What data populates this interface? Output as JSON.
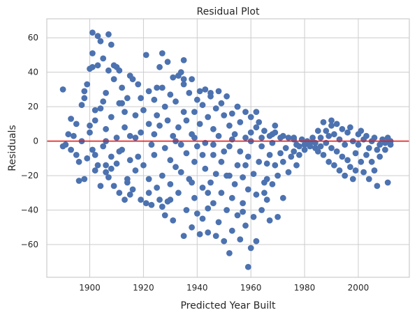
{
  "chart_data": {
    "type": "scatter",
    "title": "Residual Plot",
    "xlabel": "Predicted Year Built",
    "ylabel": "Residuals",
    "xlim": [
      1884,
      2019
    ],
    "ylim": [
      -79,
      71
    ],
    "xticks": [
      1900,
      1920,
      1940,
      1960,
      1980,
      2000
    ],
    "yticks": [
      -60,
      -40,
      -20,
      0,
      20,
      40,
      60
    ],
    "grid": true,
    "reference_line": {
      "y": 0,
      "color": "#e31a1c"
    },
    "point_color": "#4c72b0",
    "series": [
      {
        "points": [
          [
            1890,
            30
          ],
          [
            1890,
            -3
          ],
          [
            1891,
            -2
          ],
          [
            1892,
            4
          ],
          [
            1893,
            13
          ],
          [
            1893,
            -5
          ],
          [
            1894,
            3
          ],
          [
            1895,
            -8
          ],
          [
            1895,
            10
          ],
          [
            1896,
            -12
          ],
          [
            1897,
            0
          ],
          [
            1897,
            21
          ],
          [
            1898,
            -22
          ],
          [
            1898,
            25
          ],
          [
            1898,
            29
          ],
          [
            1899,
            33
          ],
          [
            1899,
            -10
          ],
          [
            1900,
            5
          ],
          [
            1900,
            9
          ],
          [
            1900,
            42
          ],
          [
            1901,
            43
          ],
          [
            1901,
            51
          ],
          [
            1901,
            63
          ],
          [
            1902,
            -17
          ],
          [
            1902,
            -8
          ],
          [
            1902,
            12
          ],
          [
            1903,
            44
          ],
          [
            1903,
            61
          ],
          [
            1903,
            -14
          ],
          [
            1904,
            19
          ],
          [
            1904,
            58
          ],
          [
            1905,
            23
          ],
          [
            1905,
            48
          ],
          [
            1905,
            -3
          ],
          [
            1906,
            28
          ],
          [
            1906,
            -18
          ],
          [
            1906,
            7
          ],
          [
            1907,
            62
          ],
          [
            1907,
            41
          ],
          [
            1907,
            -21
          ],
          [
            1908,
            56
          ],
          [
            1908,
            14
          ],
          [
            1908,
            -9
          ],
          [
            1909,
            36
          ],
          [
            1909,
            44
          ],
          [
            1909,
            -26
          ],
          [
            1910,
            2
          ],
          [
            1910,
            43
          ],
          [
            1910,
            -13
          ],
          [
            1911,
            -30
          ],
          [
            1911,
            22
          ],
          [
            1911,
            41
          ],
          [
            1912,
            -5
          ],
          [
            1912,
            31
          ],
          [
            1913,
            -34
          ],
          [
            1913,
            17
          ],
          [
            1913,
            8
          ],
          [
            1914,
            25
          ],
          [
            1914,
            -22
          ],
          [
            1915,
            38
          ],
          [
            1915,
            -11
          ],
          [
            1915,
            3
          ],
          [
            1916,
            36
          ],
          [
            1916,
            -28
          ],
          [
            1917,
            15
          ],
          [
            1917,
            -17
          ],
          [
            1918,
            -9
          ],
          [
            1918,
            33
          ],
          [
            1919,
            -34
          ],
          [
            1919,
            25
          ],
          [
            1919,
            5
          ],
          [
            1920,
            -14
          ],
          [
            1920,
            18
          ],
          [
            1921,
            50
          ],
          [
            1921,
            -36
          ],
          [
            1922,
            -22
          ],
          [
            1922,
            10
          ],
          [
            1922,
            29
          ],
          [
            1923,
            -2
          ],
          [
            1923,
            -37
          ],
          [
            1924,
            24
          ],
          [
            1924,
            -8
          ],
          [
            1925,
            15
          ],
          [
            1925,
            -27
          ],
          [
            1926,
            43
          ],
          [
            1926,
            -34
          ],
          [
            1926,
            9
          ],
          [
            1927,
            51
          ],
          [
            1927,
            -20
          ],
          [
            1927,
            31
          ],
          [
            1928,
            -43
          ],
          [
            1928,
            -4
          ],
          [
            1928,
            20
          ],
          [
            1929,
            -35
          ],
          [
            1929,
            46
          ],
          [
            1929,
            12
          ],
          [
            1930,
            -11
          ],
          [
            1930,
            -25
          ],
          [
            1930,
            27
          ],
          [
            1931,
            -46
          ],
          [
            1931,
            3
          ],
          [
            1931,
            37
          ],
          [
            1932,
            -15
          ],
          [
            1932,
            23
          ],
          [
            1933,
            38
          ],
          [
            1933,
            -30
          ],
          [
            1933,
            8
          ],
          [
            1934,
            -2
          ],
          [
            1934,
            40
          ],
          [
            1934,
            -18
          ],
          [
            1935,
            17
          ],
          [
            1935,
            -55
          ],
          [
            1935,
            33
          ],
          [
            1936,
            -40
          ],
          [
            1936,
            -7
          ],
          [
            1936,
            12
          ],
          [
            1937,
            28
          ],
          [
            1937,
            -22
          ],
          [
            1938,
            -50
          ],
          [
            1938,
            4
          ],
          [
            1938,
            36
          ],
          [
            1939,
            -33
          ],
          [
            1939,
            17
          ],
          [
            1939,
            -12
          ],
          [
            1940,
            24
          ],
          [
            1940,
            -42
          ],
          [
            1940,
            -3
          ],
          [
            1941,
            -54
          ],
          [
            1941,
            10
          ],
          [
            1941,
            29
          ],
          [
            1942,
            -27
          ],
          [
            1942,
            -45
          ],
          [
            1942,
            21
          ],
          [
            1943,
            -16
          ],
          [
            1943,
            -1
          ],
          [
            1943,
            30
          ],
          [
            1944,
            -39
          ],
          [
            1944,
            -53
          ],
          [
            1944,
            14
          ],
          [
            1945,
            -24
          ],
          [
            1945,
            26
          ],
          [
            1946,
            -8
          ],
          [
            1946,
            -36
          ],
          [
            1946,
            7
          ],
          [
            1947,
            -55
          ],
          [
            1947,
            19
          ],
          [
            1947,
            -19
          ],
          [
            1948,
            29
          ],
          [
            1948,
            -47
          ],
          [
            1948,
            3
          ],
          [
            1949,
            -30
          ],
          [
            1949,
            -12
          ],
          [
            1949,
            22
          ],
          [
            1950,
            -58
          ],
          [
            1950,
            -6
          ],
          [
            1950,
            15
          ],
          [
            1951,
            -40
          ],
          [
            1951,
            26
          ],
          [
            1951,
            -20
          ],
          [
            1952,
            -65
          ],
          [
            1952,
            -3
          ],
          [
            1952,
            9
          ],
          [
            1953,
            -52
          ],
          [
            1953,
            -33
          ],
          [
            1953,
            16
          ],
          [
            1954,
            -25
          ],
          [
            1954,
            4
          ],
          [
            1955,
            -43
          ],
          [
            1955,
            -14
          ],
          [
            1955,
            20
          ],
          [
            1956,
            -57
          ],
          [
            1956,
            -6
          ],
          [
            1956,
            11
          ],
          [
            1957,
            -36
          ],
          [
            1957,
            -21
          ],
          [
            1958,
            -49
          ],
          [
            1958,
            2
          ],
          [
            1958,
            17
          ],
          [
            1959,
            -73
          ],
          [
            1959,
            -28
          ],
          [
            1959,
            -9
          ],
          [
            1960,
            -62
          ],
          [
            1960,
            5
          ],
          [
            1960,
            14
          ],
          [
            1961,
            -44
          ],
          [
            1961,
            -19
          ],
          [
            1962,
            -58
          ],
          [
            1962,
            -31
          ],
          [
            1962,
            8
          ],
          [
            1963,
            -12
          ],
          [
            1963,
            11
          ],
          [
            1964,
            -40
          ],
          [
            1964,
            -3
          ],
          [
            1965,
            -24
          ],
          [
            1965,
            6
          ],
          [
            1966,
            -34
          ],
          [
            1966,
            -13
          ],
          [
            1967,
            -46
          ],
          [
            1967,
            3
          ],
          [
            1967,
            -8
          ],
          [
            1968,
            -25
          ],
          [
            1968,
            -1
          ],
          [
            1969,
            -14
          ],
          [
            1969,
            5
          ],
          [
            1970,
            -44
          ],
          [
            1970,
            -20
          ],
          [
            1971,
            -7
          ],
          [
            1971,
            2
          ],
          [
            1972,
            -12
          ],
          [
            1972,
            -33
          ],
          [
            1973,
            -4
          ],
          [
            1974,
            -18
          ],
          [
            1974,
            2
          ],
          [
            1975,
            -9
          ],
          [
            1976,
            -6
          ],
          [
            1976,
            1
          ],
          [
            1977,
            -14
          ],
          [
            1977,
            -2
          ],
          [
            1978,
            -3
          ],
          [
            1978,
            -8
          ],
          [
            1979,
            1
          ],
          [
            1980,
            -2
          ],
          [
            1980,
            -5
          ],
          [
            1981,
            0
          ],
          [
            1982,
            -3
          ],
          [
            1982,
            -1
          ],
          [
            1983,
            2
          ],
          [
            1984,
            -4
          ],
          [
            1984,
            -1
          ],
          [
            1985,
            6
          ],
          [
            1985,
            -6
          ],
          [
            1986,
            2
          ],
          [
            1986,
            -3
          ],
          [
            1987,
            -8
          ],
          [
            1987,
            11
          ],
          [
            1988,
            -1
          ],
          [
            1988,
            6
          ],
          [
            1989,
            -12
          ],
          [
            1989,
            3
          ],
          [
            1990,
            -4
          ],
          [
            1990,
            12
          ],
          [
            1990,
            9
          ],
          [
            1991,
            -14
          ],
          [
            1991,
            4
          ],
          [
            1992,
            -6
          ],
          [
            1992,
            10
          ],
          [
            1993,
            -17
          ],
          [
            1993,
            1
          ],
          [
            1994,
            -9
          ],
          [
            1994,
            7
          ],
          [
            1995,
            -20
          ],
          [
            1995,
            -2
          ],
          [
            1996,
            5
          ],
          [
            1996,
            -11
          ],
          [
            1997,
            -15
          ],
          [
            1997,
            8
          ],
          [
            1998,
            -22
          ],
          [
            1998,
            0
          ],
          [
            1999,
            -7
          ],
          [
            1999,
            -17
          ],
          [
            2000,
            4
          ],
          [
            2000,
            -2
          ],
          [
            2001,
            -12
          ],
          [
            2001,
            6
          ],
          [
            2002,
            -18
          ],
          [
            2002,
            1
          ],
          [
            2003,
            -8
          ],
          [
            2003,
            3
          ],
          [
            2004,
            -22
          ],
          [
            2004,
            -4
          ],
          [
            2005,
            0
          ],
          [
            2005,
            -12
          ],
          [
            2006,
            -17
          ],
          [
            2006,
            2
          ],
          [
            2007,
            -26
          ],
          [
            2007,
            -5
          ],
          [
            2008,
            -2
          ],
          [
            2008,
            -9
          ],
          [
            2009,
            1
          ],
          [
            2010,
            -5
          ],
          [
            2010,
            -1
          ],
          [
            2011,
            -24
          ],
          [
            2011,
            2
          ],
          [
            2012,
            0
          ],
          [
            2012,
            -2
          ],
          [
            1896,
            -23
          ],
          [
            1901,
            -5
          ],
          [
            1906,
            0
          ],
          [
            1911,
            -6
          ],
          [
            1917,
            2
          ],
          [
            1924,
            4
          ],
          [
            1932,
            0
          ],
          [
            1939,
            2
          ],
          [
            1946,
            -2
          ],
          [
            1953,
            1
          ],
          [
            1960,
            0
          ],
          [
            1964,
            2
          ],
          [
            1968,
            4
          ],
          [
            1972,
            3
          ],
          [
            1976,
            2
          ],
          [
            1906,
            -14
          ],
          [
            1914,
            -24
          ],
          [
            1922,
            -30
          ],
          [
            1930,
            -34
          ],
          [
            1938,
            -24
          ],
          [
            1944,
            -30
          ],
          [
            1952,
            -20
          ],
          [
            1958,
            -14
          ],
          [
            1966,
            -22
          ],
          [
            1902,
            18
          ],
          [
            1912,
            22
          ],
          [
            1925,
            31
          ],
          [
            1935,
            36
          ],
          [
            1945,
            28
          ],
          [
            1955,
            20
          ],
          [
            1962,
            17
          ],
          [
            1969,
            9
          ],
          [
            1904,
            -26
          ],
          [
            1908,
            -16
          ],
          [
            1915,
            -31
          ],
          [
            1927,
            -38
          ],
          [
            1942,
            -8
          ],
          [
            1957,
            -41
          ],
          [
            1965,
            -30
          ],
          [
            1935,
            47
          ]
        ]
      }
    ]
  }
}
